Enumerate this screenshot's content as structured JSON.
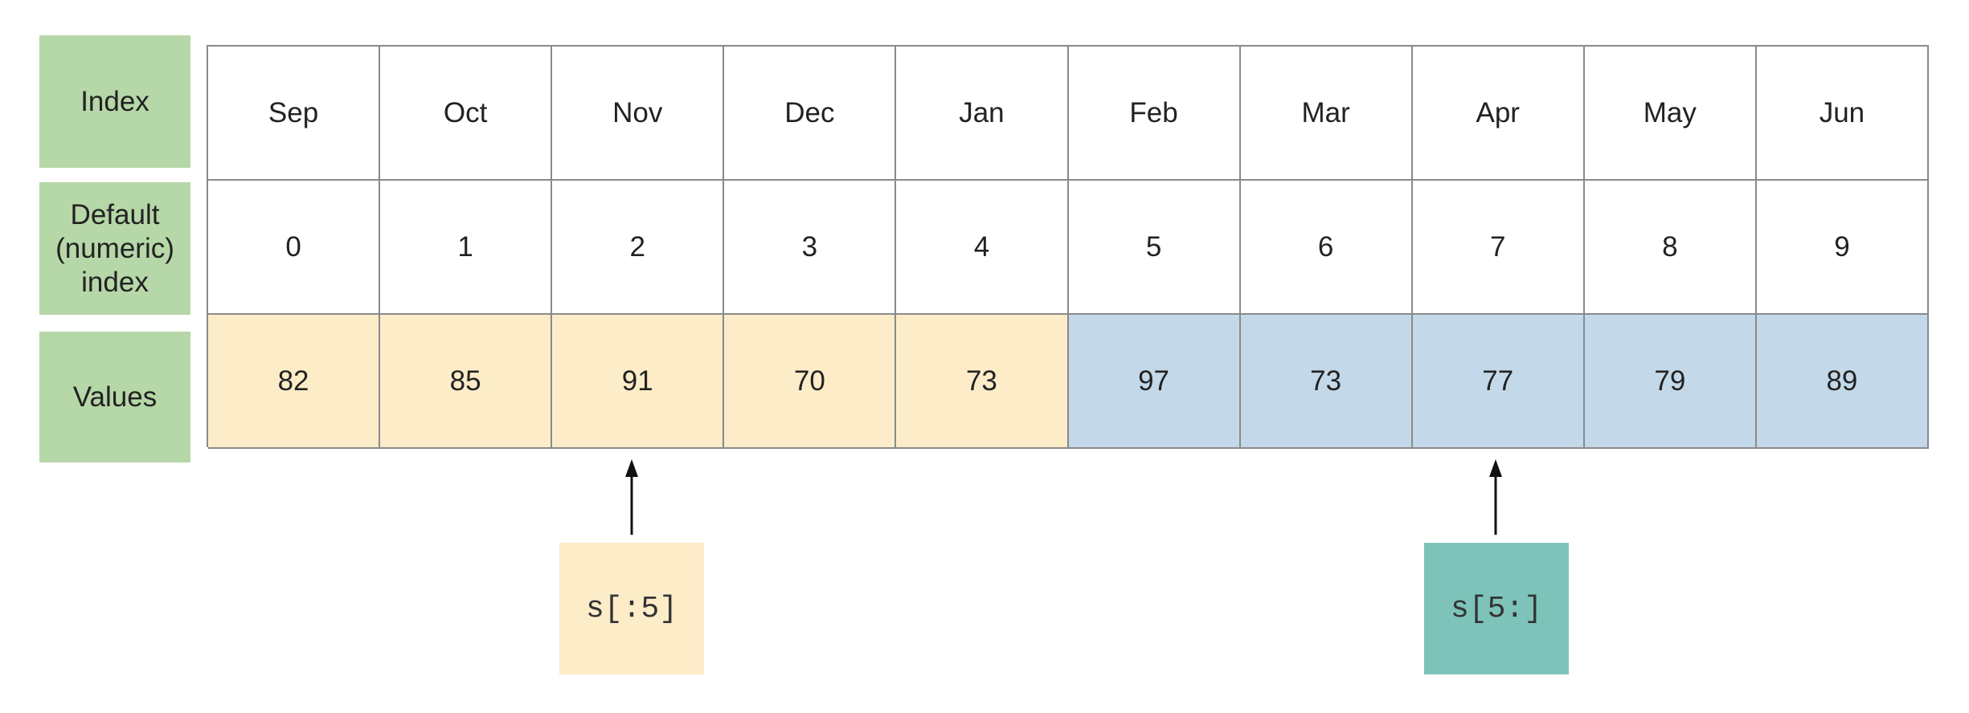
{
  "row_labels": {
    "index": "Index",
    "default_index": "Default (numeric) index",
    "values": "Values"
  },
  "months": [
    "Sep",
    "Oct",
    "Nov",
    "Dec",
    "Jan",
    "Feb",
    "Mar",
    "Apr",
    "May",
    "Jun"
  ],
  "positions": [
    "0",
    "1",
    "2",
    "3",
    "4",
    "5",
    "6",
    "7",
    "8",
    "9"
  ],
  "values": [
    "82",
    "85",
    "91",
    "70",
    "73",
    "97",
    "73",
    "77",
    "79",
    "89"
  ],
  "slices": {
    "first": "s[:5]",
    "second": "s[5:]"
  },
  "colors": {
    "row_label_bg": "#b6d7a8",
    "first_half_bg": "#fcecc8",
    "second_half_bg": "#c3d9ea",
    "second_slice_bg": "#7dc3b9",
    "grid_line": "#8a8a8a"
  }
}
